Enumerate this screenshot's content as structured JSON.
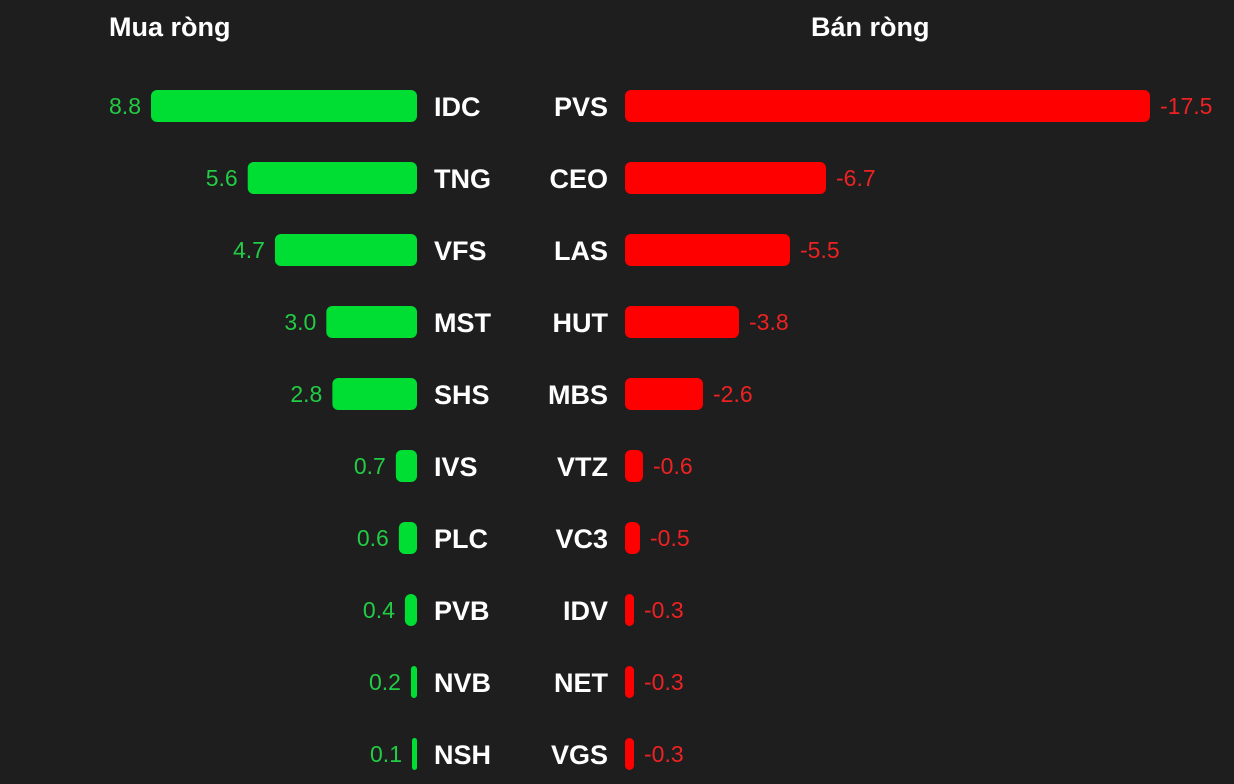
{
  "colors": {
    "background": "#1e1e1e",
    "buy": "#00dd33",
    "sell": "#ff0000",
    "buy_text": "#22cc44",
    "sell_text": "#ee2222",
    "ticker": "#ffffff"
  },
  "chart_data": [
    {
      "type": "bar",
      "orientation": "horizontal",
      "title": "Mua ròng",
      "categories": [
        "IDC",
        "TNG",
        "VFS",
        "MST",
        "SHS",
        "IVS",
        "PLC",
        "PVB",
        "NVB",
        "NSH"
      ],
      "values": [
        8.8,
        5.6,
        4.7,
        3.0,
        2.8,
        0.7,
        0.6,
        0.4,
        0.2,
        0.1
      ],
      "value_labels": [
        "8.8",
        "5.6",
        "4.7",
        "3.0",
        "2.8",
        "0.7",
        "0.6",
        "0.4",
        "0.2",
        "0.1"
      ],
      "bar_direction": "right-to-left",
      "color": "#00dd33"
    },
    {
      "type": "bar",
      "orientation": "horizontal",
      "title": "Bán ròng",
      "categories": [
        "PVS",
        "CEO",
        "LAS",
        "HUT",
        "MBS",
        "VTZ",
        "VC3",
        "IDV",
        "NET",
        "VGS"
      ],
      "values": [
        -17.5,
        -6.7,
        -5.5,
        -3.8,
        -2.6,
        -0.6,
        -0.5,
        -0.3,
        -0.3,
        -0.3
      ],
      "value_labels": [
        "-17.5",
        "-6.7",
        "-5.5",
        "-3.8",
        "-2.6",
        "-0.6",
        "-0.5",
        "-0.3",
        "-0.3",
        "-0.3"
      ],
      "bar_direction": "left-to-right",
      "color": "#ff0000"
    }
  ]
}
